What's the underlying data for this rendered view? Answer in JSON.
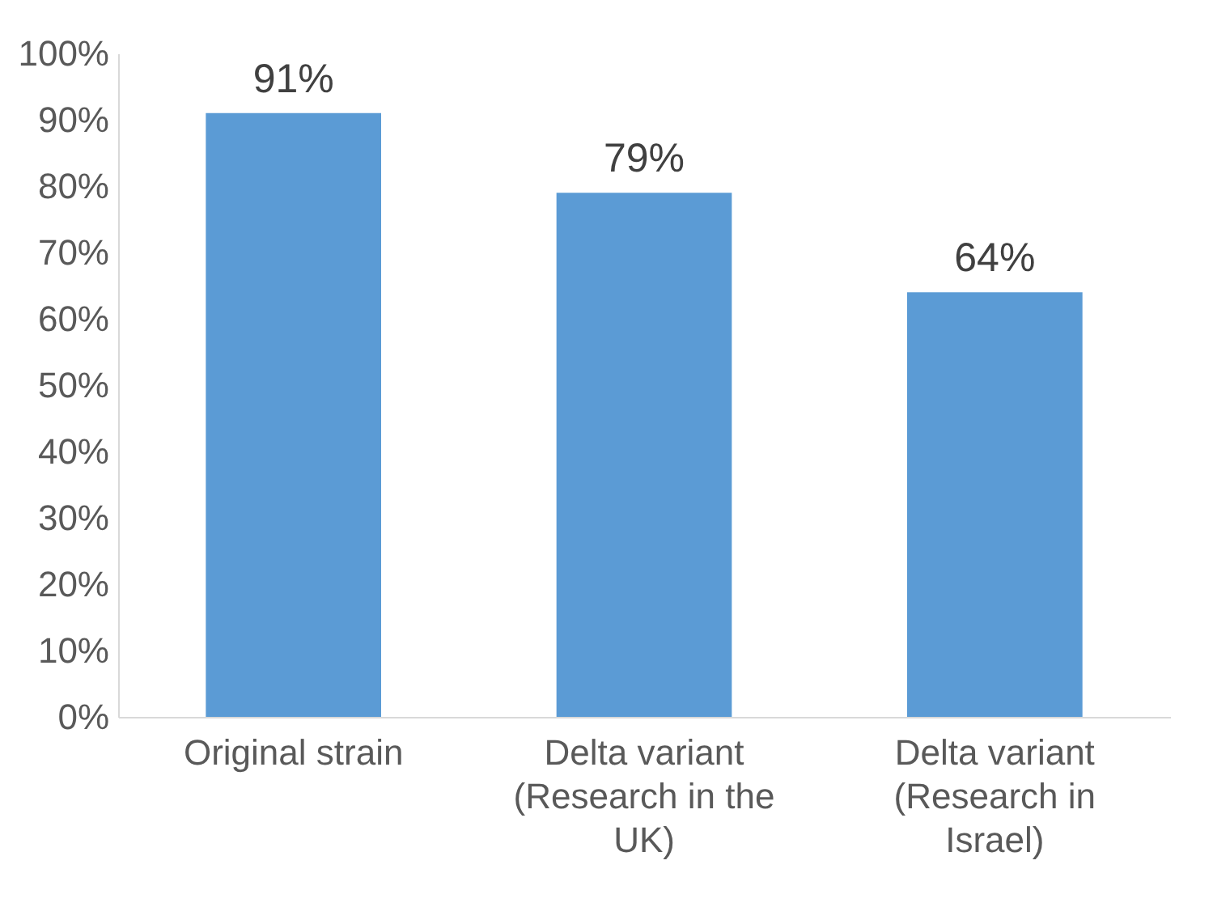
{
  "chart_data": {
    "type": "bar",
    "categories": [
      "Original strain",
      "Delta variant (Research in the UK)",
      "Delta variant (Research in Israel)"
    ],
    "values": [
      91,
      79,
      64
    ],
    "value_labels": [
      "91%",
      "79%",
      "64%"
    ],
    "color": "#5b9bd5",
    "ylim": [
      0,
      100
    ],
    "yticks": [
      {
        "value": 0,
        "label": "0%"
      },
      {
        "value": 10,
        "label": "10%"
      },
      {
        "value": 20,
        "label": "20%"
      },
      {
        "value": 30,
        "label": "30%"
      },
      {
        "value": 40,
        "label": "40%"
      },
      {
        "value": 50,
        "label": "50%"
      },
      {
        "value": 60,
        "label": "60%"
      },
      {
        "value": 70,
        "label": "70%"
      },
      {
        "value": 80,
        "label": "80%"
      },
      {
        "value": 90,
        "label": "90%"
      },
      {
        "value": 100,
        "label": "100%"
      }
    ],
    "grid": false
  }
}
